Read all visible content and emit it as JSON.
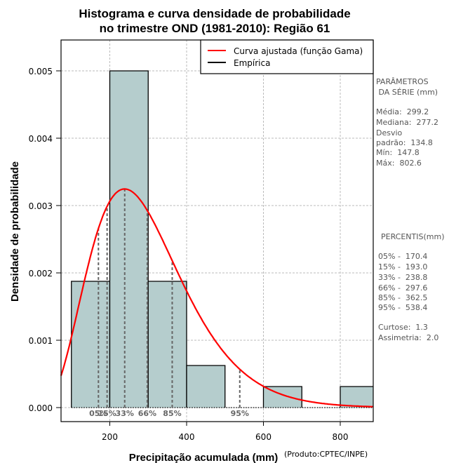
{
  "chart_data": {
    "type": "bar",
    "title_lines": [
      "Histograma e curva densidade de probabilidade",
      "no trimestre OND (1981-2010): Região 61"
    ],
    "xlabel": "Precipitação acumulada (mm)",
    "ylabel": "Densidade de probabilidade",
    "xlim": [
      73,
      882
    ],
    "ylim": [
      0,
      0.0054
    ],
    "x_ticks": [
      200,
      400,
      600,
      800
    ],
    "x_tick_labels": [
      "200",
      "400",
      "600",
      "800"
    ],
    "y_ticks": [
      0,
      0.001,
      0.002,
      0.003,
      0.004,
      0.005
    ],
    "y_tick_labels": [
      "0.000",
      "0.001",
      "0.002",
      "0.003",
      "0.004",
      "0.005"
    ],
    "grid": true,
    "histogram": {
      "bins": [
        [
          100,
          200
        ],
        [
          200,
          300
        ],
        [
          300,
          400
        ],
        [
          400,
          500
        ],
        [
          500,
          600
        ],
        [
          600,
          700
        ],
        [
          700,
          800
        ],
        [
          800,
          900
        ]
      ],
      "density": [
        0.001875,
        0.005,
        0.001875,
        0.000625,
        0,
        0.0003125,
        0,
        0.0003125
      ],
      "fill": "#b5cdcd"
    },
    "gamma_curve": {
      "name": "Curva ajustada (função Gama)",
      "color": "#ff0000",
      "shape": 4.93,
      "scale": 60.7
    },
    "legend": {
      "placement": "top-right",
      "entries": [
        {
          "label": "Curva ajustada (função Gama)",
          "color": "#ff0000"
        },
        {
          "label": "Empírica",
          "color": "#000000"
        }
      ]
    },
    "percentiles": [
      {
        "label": "05%",
        "value": 170.4
      },
      {
        "label": "15%",
        "value": 193.0
      },
      {
        "label": "33%",
        "value": 238.8
      },
      {
        "label": "66%",
        "value": 297.6
      },
      {
        "label": "85%",
        "value": 362.5
      },
      {
        "label": "95%",
        "value": 538.4
      }
    ]
  },
  "side_panel": {
    "params_title_1": "PARÂMETROS",
    "params_title_2": " DA SÉRIE (mm)",
    "params": [
      "Média:  299.2",
      "Mediana:  277.2",
      "Desvio",
      "padrão:  134.8",
      "Mín:  147.8",
      "Máx:  802.6"
    ],
    "percentis_title": "PERCENTIS(mm)",
    "percentis": [
      "05% -  170.4",
      "15% -  193.0",
      "33% -  238.8",
      "66% -  297.6",
      "85% -  362.5",
      "95% -  538.4"
    ],
    "stats": [
      "Curtose:  1.3",
      "Assimetria:  2.0"
    ]
  },
  "credit": "(Produto:CPTEC/INPE)"
}
